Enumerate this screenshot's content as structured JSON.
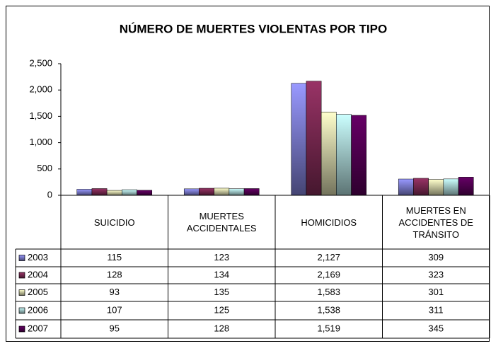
{
  "chart_data": {
    "type": "bar",
    "title": "NÚMERO DE MUERTES VIOLENTAS POR TIPO",
    "categories": [
      "SUICIDIO",
      "MUERTES ACCIDENTALES",
      "HOMICIDIOS",
      "MUERTES EN ACCIDENTES DE TRÁNSITO"
    ],
    "series": [
      {
        "name": "2003",
        "color": "#9999ff",
        "values": [
          115,
          123,
          2127,
          309
        ],
        "value_labels": [
          "115",
          "123",
          "2,127",
          "309"
        ]
      },
      {
        "name": "2004",
        "color": "#993366",
        "values": [
          128,
          134,
          2169,
          323
        ],
        "value_labels": [
          "128",
          "134",
          "2,169",
          "323"
        ]
      },
      {
        "name": "2005",
        "color": "#ffffcc",
        "values": [
          93,
          135,
          1583,
          301
        ],
        "value_labels": [
          "93",
          "135",
          "1,583",
          "301"
        ]
      },
      {
        "name": "2006",
        "color": "#ccffff",
        "values": [
          107,
          125,
          1538,
          311
        ],
        "value_labels": [
          "107",
          "125",
          "1,538",
          "311"
        ]
      },
      {
        "name": "2007",
        "color": "#660066",
        "values": [
          95,
          128,
          1519,
          345
        ],
        "value_labels": [
          "95",
          "128",
          "1,519",
          "345"
        ]
      }
    ],
    "ylim": [
      0,
      2500
    ],
    "yticks": [
      0,
      500,
      {
        "value": 1000,
        "label": "1,000"
      },
      {
        "value": 1500,
        "label": "1,500"
      },
      {
        "value": 2000,
        "label": "2,000"
      },
      {
        "value": 2500,
        "label": "2,500"
      }
    ],
    "grid": false
  }
}
